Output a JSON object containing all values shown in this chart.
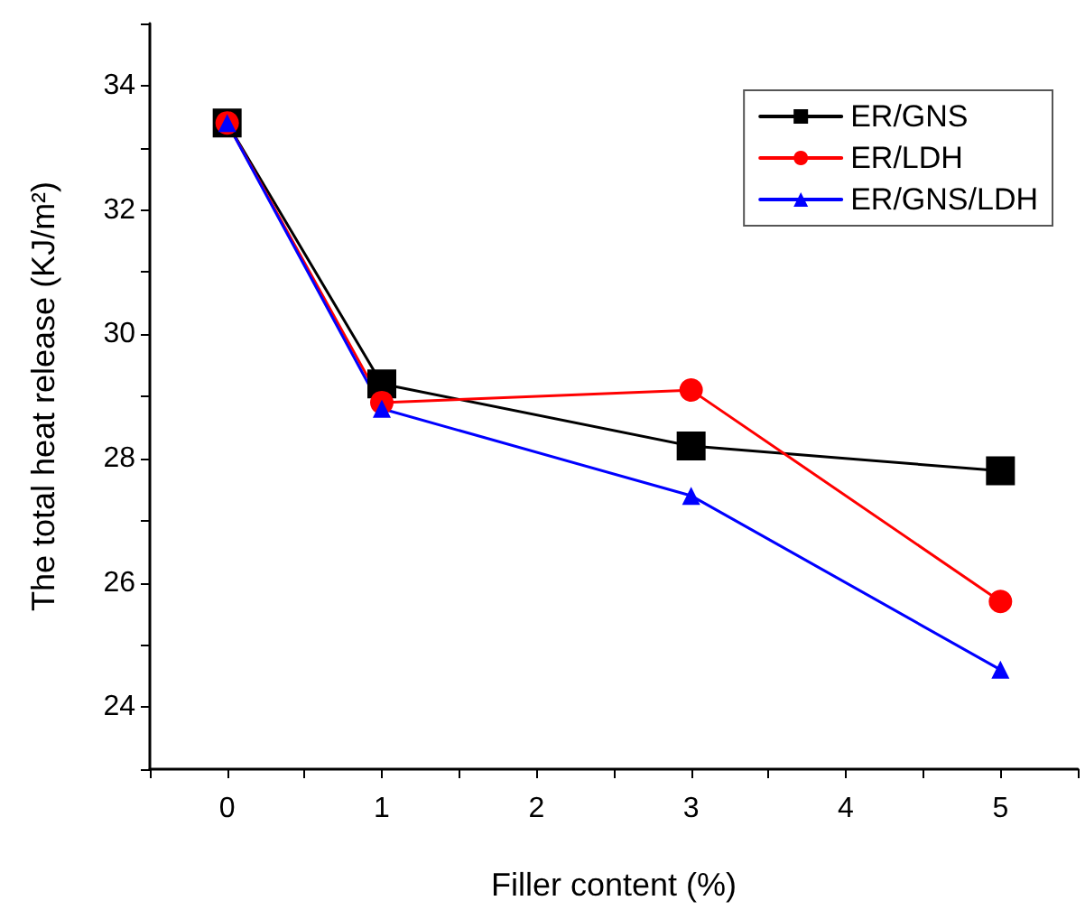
{
  "chart_data": {
    "type": "line",
    "xlabel": "Filler content (%)",
    "ylabel": "The total heat release (KJ/m²)",
    "x": [
      0,
      1,
      3,
      5
    ],
    "series": [
      {
        "name": "ER/GNS",
        "color": "#000000",
        "marker": "square",
        "values": [
          33.4,
          29.2,
          28.2,
          27.8
        ]
      },
      {
        "name": "ER/LDH",
        "color": "#ff0000",
        "marker": "circle",
        "values": [
          33.4,
          28.9,
          29.1,
          25.7
        ]
      },
      {
        "name": "ER/GNS/LDH",
        "color": "#0000ff",
        "marker": "triangle",
        "values": [
          33.4,
          28.8,
          27.4,
          24.6
        ]
      }
    ],
    "xlim": [
      -0.5,
      5.5
    ],
    "xticks": [
      {
        "value": -0.5,
        "label": null
      },
      0,
      {
        "value": 0.5,
        "label": null
      },
      1,
      {
        "value": 1.5,
        "label": null
      },
      2,
      {
        "value": 2.5,
        "label": null
      },
      3,
      {
        "value": 3.5,
        "label": null
      },
      4,
      {
        "value": 4.5,
        "label": null
      },
      5,
      {
        "value": 5.5,
        "label": null
      }
    ],
    "ylim": [
      23,
      35
    ],
    "yticks": [
      {
        "value": 23,
        "label": null
      },
      24,
      {
        "value": 25,
        "label": null
      },
      26,
      {
        "value": 27,
        "label": null
      },
      28,
      {
        "value": 29,
        "label": null
      },
      30,
      {
        "value": 31,
        "label": null
      },
      32,
      {
        "value": 33,
        "label": null
      },
      34,
      {
        "value": 35,
        "label": null
      }
    ],
    "grid": false,
    "legend": "top right",
    "line_style": "solid"
  }
}
